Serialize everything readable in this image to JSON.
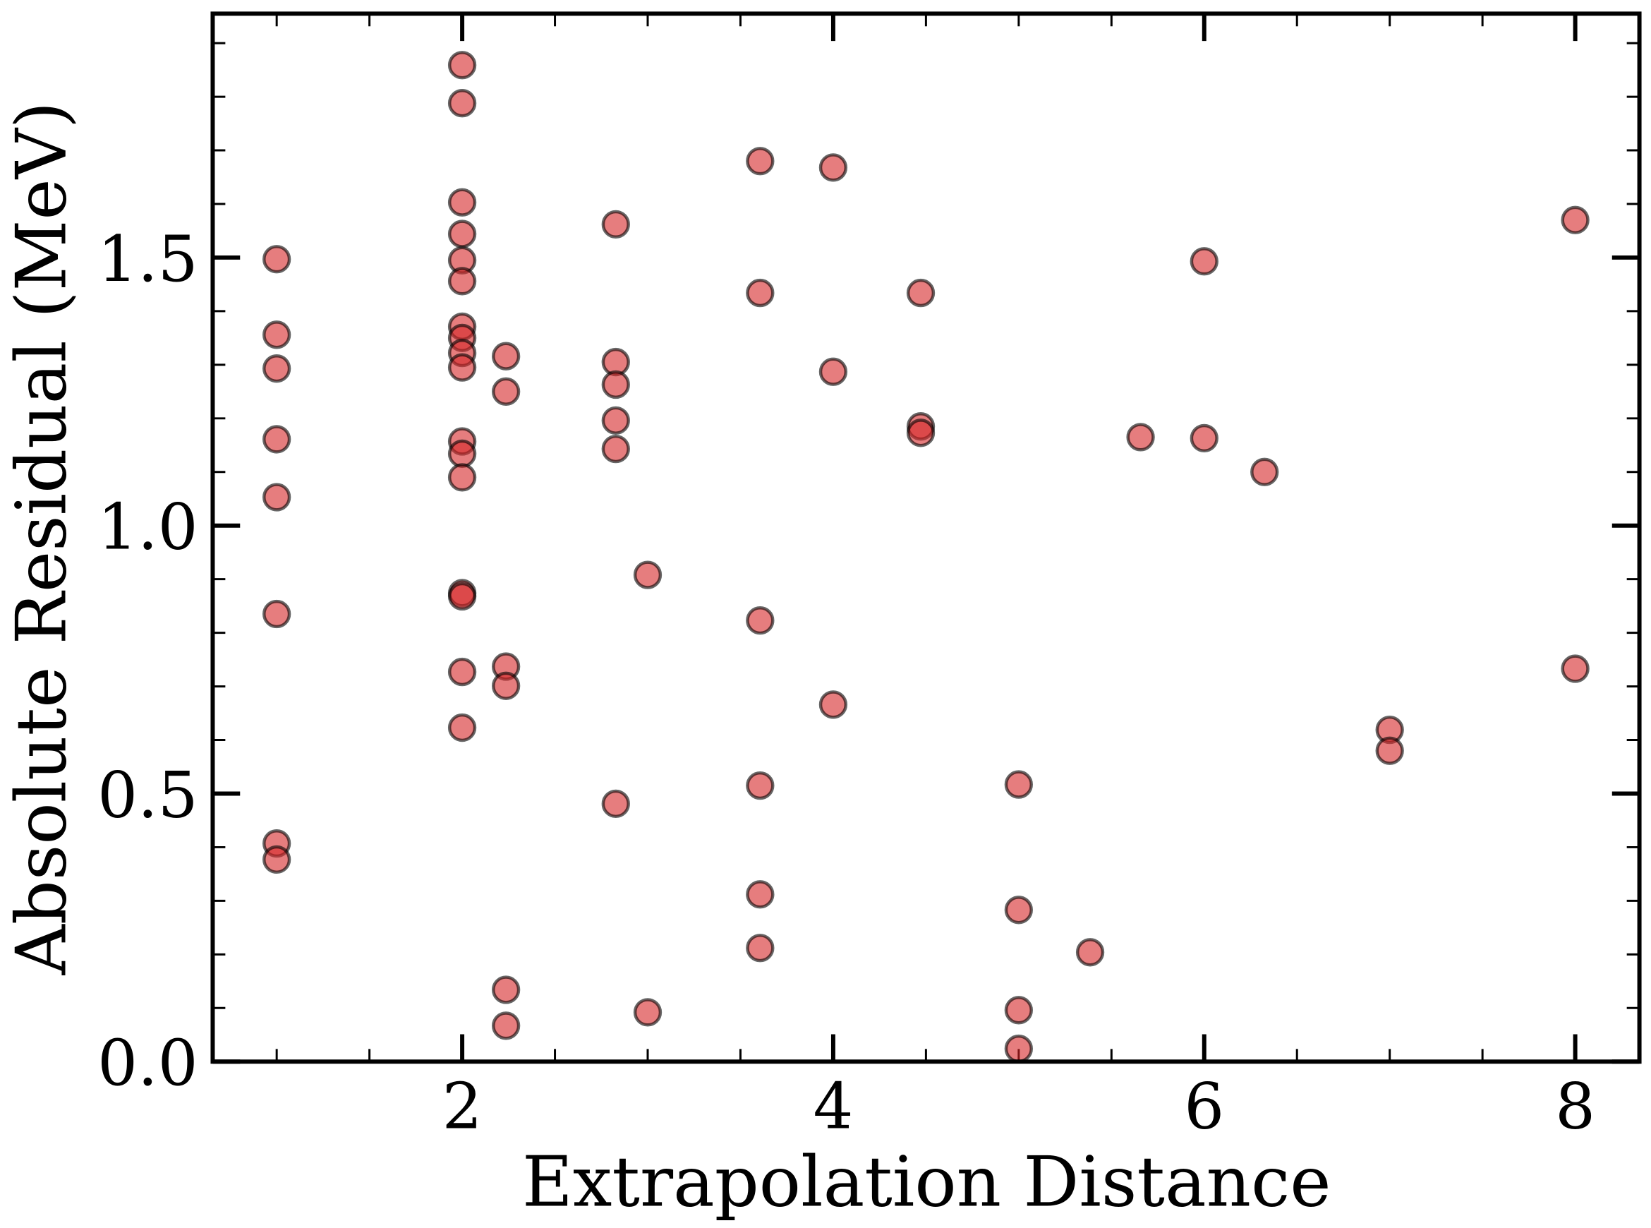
{
  "chart_data": {
    "type": "scatter",
    "x_label": "Extrapolation Distance",
    "y_label": "Absolute Residual (MeV)",
    "color": "#d62728",
    "edge_color": "#000000",
    "xlim": [
      0.655,
      8.346
    ],
    "ylim": [
      0,
      1.955
    ],
    "xticks": [
      2,
      4,
      6,
      8
    ],
    "xminorticks": [
      1,
      1.5,
      2.5,
      3,
      3.5,
      4.5,
      5,
      5.5,
      6.5,
      7,
      7.5
    ],
    "yticks": [
      {
        "value": 0,
        "label": "0.0"
      },
      {
        "value": 0.5,
        "label": "0.5"
      },
      {
        "value": 1,
        "label": "1.0"
      },
      {
        "value": 1.5,
        "label": "1.5"
      }
    ],
    "yminorticks": [
      0.1,
      0.2,
      0.3,
      0.4,
      0.6,
      0.7,
      0.8,
      0.9,
      1.1,
      1.2,
      1.3,
      1.4,
      1.6,
      1.7,
      1.8,
      1.9
    ],
    "x": [
      1,
      1,
      1,
      1,
      1,
      1,
      1,
      1,
      2,
      2,
      2,
      2,
      2,
      2,
      2,
      2,
      2,
      2,
      2,
      2,
      2,
      2,
      2,
      2,
      2,
      2.236,
      2.236,
      2.236,
      2.236,
      2.236,
      2.236,
      2.828,
      2.828,
      2.828,
      2.828,
      2.828,
      2.828,
      3,
      3,
      3.606,
      3.606,
      3.606,
      3.606,
      3.606,
      3.606,
      4,
      4,
      4,
      4.472,
      4.472,
      4.472,
      5,
      5,
      5,
      5,
      5.385,
      5.657,
      6,
      6,
      6.325,
      7,
      7,
      8,
      8
    ],
    "values": [
      1.497,
      1.356,
      1.293,
      1.161,
      1.053,
      0.835,
      0.407,
      0.377,
      1.859,
      1.788,
      1.603,
      1.544,
      1.495,
      1.456,
      1.371,
      1.35,
      1.322,
      1.295,
      1.157,
      1.134,
      1.09,
      0.874,
      0.868,
      0.727,
      0.623,
      1.316,
      1.25,
      0.737,
      0.701,
      0.134,
      0.067,
      1.562,
      1.305,
      1.263,
      1.196,
      1.143,
      0.481,
      0.908,
      0.092,
      1.68,
      1.434,
      0.823,
      0.515,
      0.312,
      0.212,
      1.668,
      1.287,
      0.666,
      1.434,
      1.185,
      1.173,
      0.517,
      0.283,
      0.096,
      0.024,
      0.204,
      1.165,
      1.493,
      1.163,
      1.1,
      0.619,
      0.58,
      1.57,
      0.733
    ]
  }
}
